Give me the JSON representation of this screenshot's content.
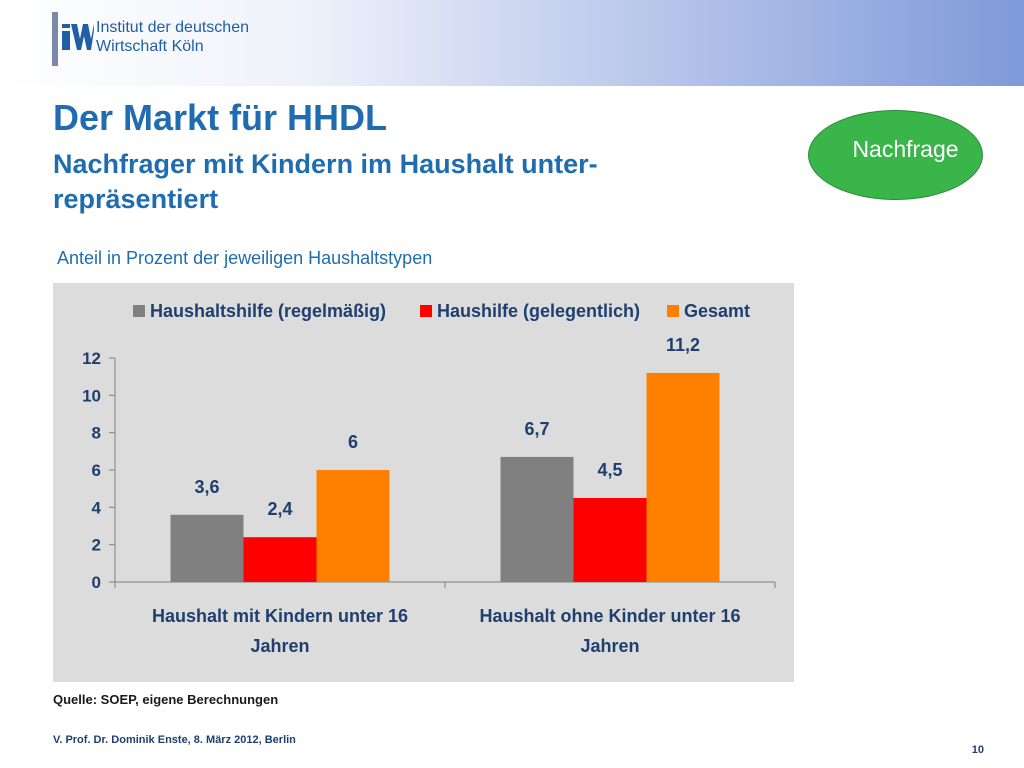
{
  "header": {
    "logo_line1": "Institut der deutschen",
    "logo_line2": "Wirtschaft Köln"
  },
  "slide": {
    "title": "Der Markt für HHDL",
    "subtitle": "Nachfrager mit Kindern im Haushalt unter-repräsentiert",
    "badge": "Nachfrage",
    "caption": "Anteil in Prozent der jeweiligen Haushaltstypen"
  },
  "chart_data": {
    "type": "bar",
    "categories": [
      [
        "Haushalt mit Kindern unter 16",
        "Jahren"
      ],
      [
        "Haushalt ohne Kinder unter 16",
        "Jahren"
      ]
    ],
    "series": [
      {
        "name": "Haushaltshilfe (regelmäßig)",
        "color": "#808080",
        "values": [
          3.6,
          6.7
        ],
        "labels": [
          "3,6",
          "6,7"
        ]
      },
      {
        "name": "Haushilfe (gelegentlich)",
        "color": "#ff0000",
        "values": [
          2.4,
          4.5
        ],
        "labels": [
          "2,4",
          "4,5"
        ]
      },
      {
        "name": "Gesamt",
        "color": "#ff7f00",
        "values": [
          6,
          11.2
        ],
        "labels": [
          "6",
          "11,2"
        ]
      }
    ],
    "ylim": [
      0,
      12
    ],
    "yticks": [
      0,
      2,
      4,
      6,
      8,
      10,
      12
    ],
    "legend_position": "top",
    "grid": false,
    "text_color": "#1f3f6e"
  },
  "footer": {
    "source": "Quelle: SOEP, eigene Berechnungen",
    "author": "V. Prof. Dr. Dominik Enste, 8. März 2012, Berlin",
    "page": "10"
  }
}
